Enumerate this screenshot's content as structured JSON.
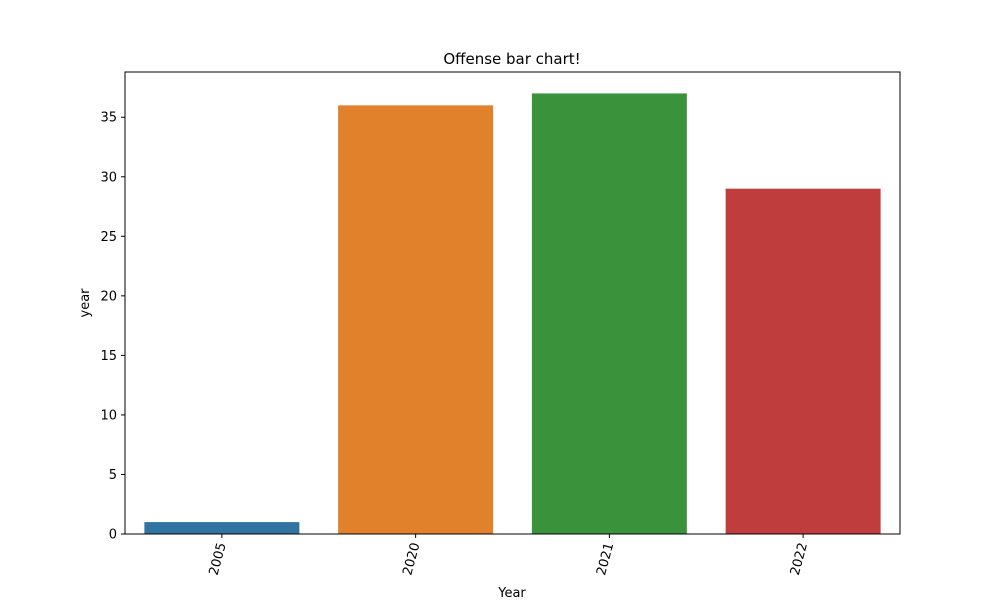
{
  "chart_data": {
    "type": "bar",
    "title": "Offense bar chart!",
    "xlabel": "Year",
    "ylabel": "year",
    "categories": [
      "2005",
      "2020",
      "2021",
      "2022"
    ],
    "values": [
      1,
      36,
      37,
      29
    ],
    "colors": [
      "#3274a1",
      "#e1812c",
      "#3a923a",
      "#c03d3e"
    ],
    "ylim": [
      0,
      38.8
    ],
    "yticks": [
      0,
      5,
      10,
      15,
      20,
      25,
      30,
      35
    ],
    "xtick_rotation": 75,
    "grid": false,
    "legend": "none"
  }
}
